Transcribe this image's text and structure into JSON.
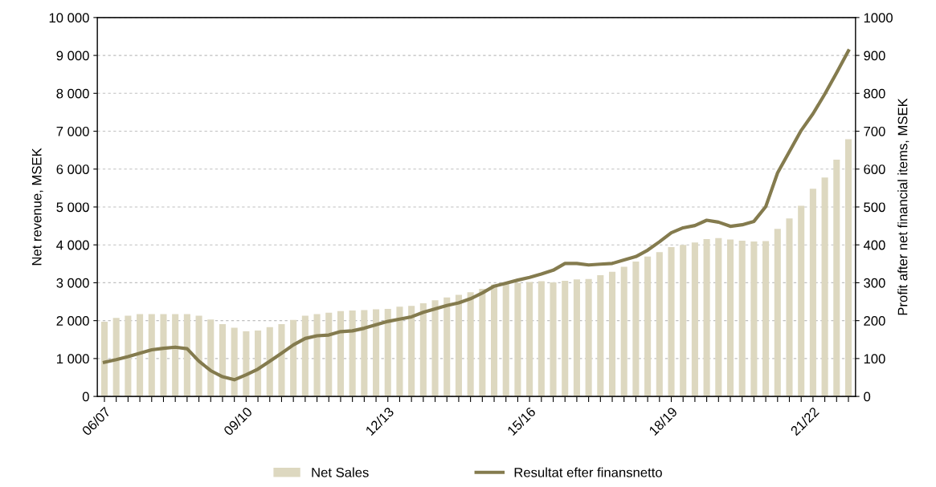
{
  "chart_data": {
    "type": "bar",
    "categories": [
      "06/07",
      null,
      null,
      null,
      null,
      null,
      null,
      null,
      null,
      null,
      null,
      null,
      "09/10",
      null,
      null,
      null,
      null,
      null,
      null,
      null,
      null,
      null,
      null,
      null,
      "12/13",
      null,
      null,
      null,
      null,
      null,
      null,
      null,
      null,
      null,
      null,
      null,
      "15/16",
      null,
      null,
      null,
      null,
      null,
      null,
      null,
      null,
      null,
      null,
      null,
      "18/19",
      null,
      null,
      null,
      null,
      null,
      null,
      null,
      null,
      null,
      null,
      null,
      "21/22",
      null,
      null,
      null
    ],
    "ylabel": "Net revenue, MSEK",
    "y2label": "Profit after net financial items, MSEK",
    "series": [
      {
        "name": "Net Sales",
        "color": "#ddd8c0",
        "values": [
          1970,
          2070,
          2130,
          2170,
          2170,
          2170,
          2170,
          2170,
          2130,
          2030,
          1910,
          1810,
          1720,
          1740,
          1830,
          1910,
          2020,
          2130,
          2170,
          2210,
          2250,
          2270,
          2280,
          2300,
          2310,
          2370,
          2390,
          2460,
          2540,
          2610,
          2680,
          2750,
          2840,
          2950,
          2990,
          3000,
          3020,
          3040,
          3010,
          3050,
          3090,
          3100,
          3200,
          3290,
          3420,
          3560,
          3690,
          3810,
          3940,
          4000,
          4060,
          4150,
          4180,
          4140,
          4110,
          4090,
          4100,
          4420,
          4700,
          5030,
          5480,
          5780,
          6250,
          6790
        ]
      },
      {
        "name": "Resultat efter finansnetto",
        "type": "line",
        "axis": "y2",
        "color": "#847b4e",
        "values": [
          90,
          97,
          105,
          114,
          123,
          127,
          130,
          126,
          93,
          68,
          52,
          44,
          57,
          72,
          93,
          114,
          136,
          153,
          160,
          162,
          171,
          173,
          180,
          189,
          198,
          204,
          210,
          222,
          231,
          240,
          247,
          258,
          273,
          291,
          299,
          307,
          314,
          323,
          333,
          351,
          351,
          347,
          349,
          351,
          360,
          369,
          386,
          408,
          432,
          445,
          451,
          465,
          460,
          449,
          453,
          462,
          501,
          590,
          646,
          702,
          746,
          798,
          854,
          912
        ]
      }
    ],
    "ylim": [
      0,
      10000
    ],
    "yticks": [
      0,
      {
        "value": 1000,
        "label": "1 000"
      },
      {
        "value": 2000,
        "label": "2 000"
      },
      {
        "value": 3000,
        "label": "3 000"
      },
      {
        "value": 4000,
        "label": "4 000"
      },
      {
        "value": 5000,
        "label": "5 000"
      },
      {
        "value": 6000,
        "label": "6 000"
      },
      {
        "value": 7000,
        "label": "7 000"
      },
      {
        "value": 8000,
        "label": "8 000"
      },
      {
        "value": 9000,
        "label": "9 000"
      },
      {
        "value": 10000,
        "label": "10 000"
      }
    ],
    "y2lim": [
      0,
      1000
    ],
    "y2ticks": [
      0,
      100,
      200,
      300,
      400,
      500,
      600,
      700,
      800,
      900,
      1000
    ],
    "grid": "y",
    "legend": "bottom",
    "line_style": "solid",
    "marker": "none"
  }
}
